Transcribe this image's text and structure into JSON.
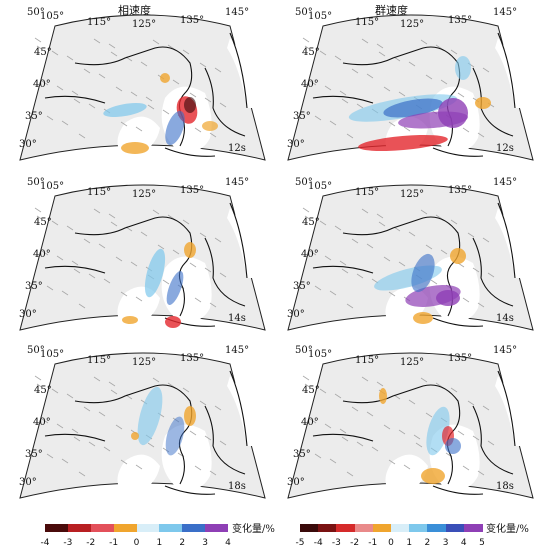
{
  "titles": {
    "left": "相速度",
    "right": "群速度"
  },
  "lon_labels": [
    "105°",
    "115°",
    "125°",
    "135°",
    "145°"
  ],
  "lat_labels": [
    "50°",
    "45°",
    "40°",
    "35°",
    "30°"
  ],
  "periods": [
    "12s",
    "14s",
    "18s"
  ],
  "colorbars": {
    "left": {
      "ticks": [
        "-4",
        "-3",
        "-2",
        "-1",
        "0",
        "1",
        "2",
        "3",
        "4"
      ],
      "label": "变化量/%"
    },
    "right": {
      "ticks": [
        "-5",
        "-4",
        "-3",
        "-2",
        "-1",
        "0",
        "1",
        "2",
        "3",
        "4",
        "5"
      ],
      "label": "变化量/%"
    }
  },
  "colors": {
    "neg_strong": "#3a0a0a",
    "neg_mid": "#e3272d",
    "neg_weak": "#f0a52e",
    "pos_weak": "#7ec8ec",
    "pos_mid": "#3a6fc8",
    "pos_strong": "#8e3fb5"
  }
}
